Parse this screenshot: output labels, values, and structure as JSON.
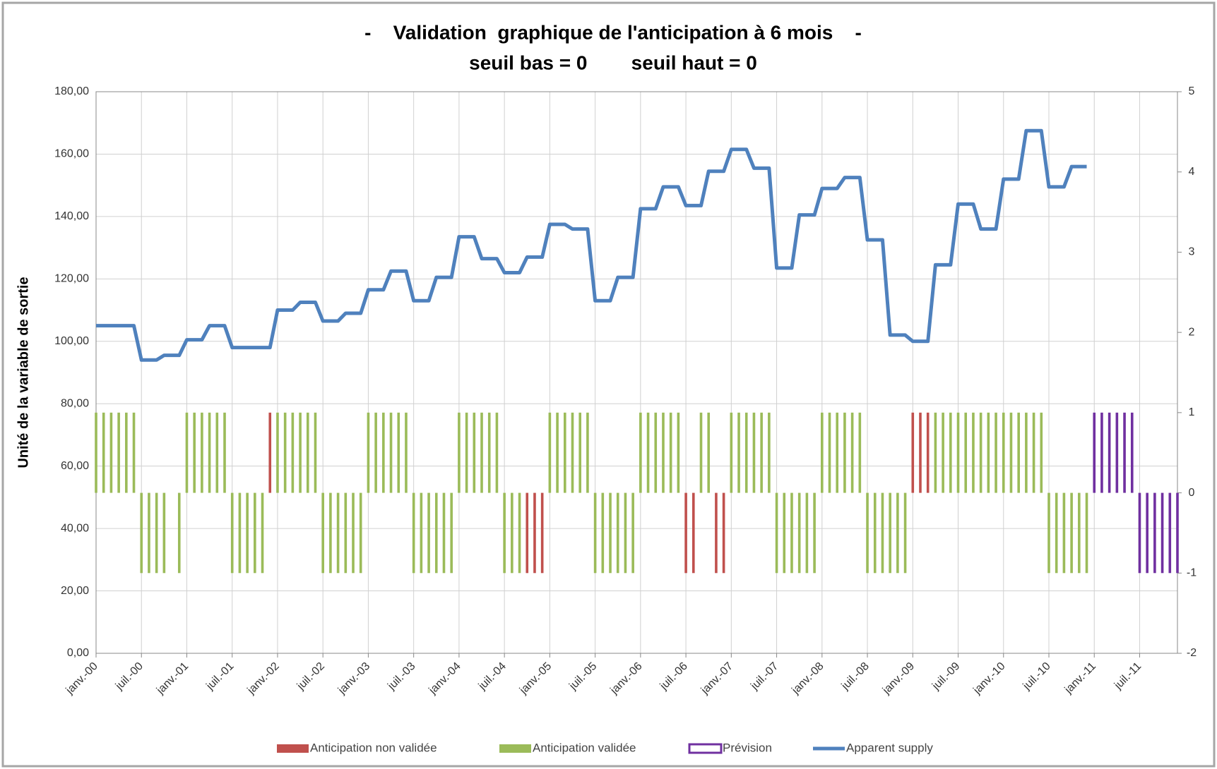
{
  "chart_data": {
    "type": "combo",
    "title": "-    Validation  graphique de l'anticipation à 6 mois    -",
    "subtitle": "seuil bas = 0        seuil haut = 0",
    "y_label": "Unité de la variable de sortie",
    "categories": [
      "janv.-00",
      null,
      null,
      null,
      null,
      null,
      "juil.-00",
      null,
      null,
      null,
      null,
      null,
      "janv.-01",
      null,
      null,
      null,
      null,
      null,
      "juil.-01",
      null,
      null,
      null,
      null,
      null,
      "janv.-02",
      null,
      null,
      null,
      null,
      null,
      "juil.-02",
      null,
      null,
      null,
      null,
      null,
      "janv.-03",
      null,
      null,
      null,
      null,
      null,
      "juil.-03",
      null,
      null,
      null,
      null,
      null,
      "janv.-04",
      null,
      null,
      null,
      null,
      null,
      "juil.-04",
      null,
      null,
      null,
      null,
      null,
      "janv.-05",
      null,
      null,
      null,
      null,
      null,
      "juil.-05",
      null,
      null,
      null,
      null,
      null,
      "janv.-06",
      null,
      null,
      null,
      null,
      null,
      "juil.-06",
      null,
      null,
      null,
      null,
      null,
      "janv.-07",
      null,
      null,
      null,
      null,
      null,
      "juil.-07",
      null,
      null,
      null,
      null,
      null,
      "janv.-08",
      null,
      null,
      null,
      null,
      null,
      "juil.-08",
      null,
      null,
      null,
      null,
      null,
      "janv.-09",
      null,
      null,
      null,
      null,
      null,
      "juil.-09",
      null,
      null,
      null,
      null,
      null,
      "janv.-10",
      null,
      null,
      null,
      null,
      null,
      "juil.-10",
      null,
      null,
      null,
      null,
      null,
      "janv.-11",
      null,
      null,
      null,
      null,
      null,
      "juil.-11",
      null,
      null,
      null,
      null,
      null
    ],
    "ylim": [
      0,
      180
    ],
    "yticks": [
      {
        "value": 0,
        "label": "0,00"
      },
      {
        "value": 20,
        "label": "20,00"
      },
      {
        "value": 40,
        "label": "40,00"
      },
      {
        "value": 60,
        "label": "60,00"
      },
      {
        "value": 80,
        "label": "80,00"
      },
      {
        "value": 100,
        "label": "100,00"
      },
      {
        "value": 120,
        "label": "120,00"
      },
      {
        "value": 140,
        "label": "140,00"
      },
      {
        "value": 160,
        "label": "160,00"
      },
      {
        "value": 180,
        "label": "180,00"
      }
    ],
    "y2lim": [
      -2,
      5
    ],
    "y2ticks": [
      -2,
      -1,
      0,
      1,
      2,
      3,
      4,
      5
    ],
    "grid": true,
    "legend": "bottom",
    "series": [
      {
        "name": "Anticipation non validée",
        "type": "bar",
        "axis": "y2",
        "color": "#c0504d",
        "values": [
          null,
          null,
          null,
          null,
          null,
          null,
          null,
          null,
          null,
          null,
          null,
          null,
          null,
          null,
          null,
          null,
          null,
          null,
          null,
          null,
          null,
          null,
          null,
          1,
          null,
          null,
          null,
          null,
          null,
          null,
          null,
          null,
          null,
          null,
          null,
          null,
          null,
          null,
          null,
          null,
          null,
          null,
          null,
          null,
          null,
          null,
          null,
          null,
          null,
          null,
          null,
          null,
          null,
          null,
          null,
          null,
          null,
          -1,
          -1,
          -1,
          null,
          null,
          null,
          null,
          null,
          null,
          null,
          null,
          null,
          null,
          null,
          null,
          null,
          null,
          null,
          null,
          null,
          null,
          -1,
          -1,
          null,
          null,
          -1,
          -1,
          null,
          null,
          null,
          null,
          null,
          null,
          null,
          null,
          null,
          null,
          null,
          null,
          null,
          null,
          null,
          null,
          null,
          null,
          null,
          null,
          null,
          null,
          null,
          null,
          1,
          1,
          1,
          null,
          null,
          null,
          null,
          null,
          null,
          null,
          null,
          null,
          null,
          null,
          null,
          null,
          null,
          null,
          null,
          null,
          null,
          null,
          null,
          null,
          null,
          null,
          null,
          null,
          null,
          null,
          null,
          null,
          null,
          null,
          null,
          null
        ]
      },
      {
        "name": "Anticipation validée",
        "type": "bar",
        "axis": "y2",
        "color": "#9bbb59",
        "values": [
          1,
          1,
          1,
          1,
          1,
          1,
          -1,
          -1,
          -1,
          -1,
          null,
          -1,
          1,
          1,
          1,
          1,
          1,
          1,
          -1,
          -1,
          -1,
          -1,
          -1,
          null,
          1,
          1,
          1,
          1,
          1,
          1,
          -1,
          -1,
          -1,
          -1,
          -1,
          -1,
          1,
          1,
          1,
          1,
          1,
          1,
          -1,
          -1,
          -1,
          -1,
          -1,
          -1,
          1,
          1,
          1,
          1,
          1,
          1,
          -1,
          -1,
          -1,
          null,
          null,
          null,
          1,
          1,
          1,
          1,
          1,
          1,
          -1,
          -1,
          -1,
          -1,
          -1,
          -1,
          1,
          1,
          1,
          1,
          1,
          1,
          null,
          null,
          1,
          1,
          null,
          null,
          1,
          1,
          1,
          1,
          1,
          1,
          -1,
          -1,
          -1,
          -1,
          -1,
          -1,
          1,
          1,
          1,
          1,
          1,
          1,
          -1,
          -1,
          -1,
          -1,
          -1,
          -1,
          null,
          null,
          null,
          1,
          1,
          1,
          1,
          1,
          1,
          1,
          1,
          1,
          1,
          1,
          1,
          1,
          1,
          1,
          -1,
          -1,
          -1,
          -1,
          -1,
          -1,
          null,
          null,
          null,
          null,
          null,
          null,
          null,
          null,
          null,
          null,
          null,
          null
        ]
      },
      {
        "name": "Prévision",
        "type": "bar",
        "axis": "y2",
        "color": "#7030a0",
        "values": [
          null,
          null,
          null,
          null,
          null,
          null,
          null,
          null,
          null,
          null,
          null,
          null,
          null,
          null,
          null,
          null,
          null,
          null,
          null,
          null,
          null,
          null,
          null,
          null,
          null,
          null,
          null,
          null,
          null,
          null,
          null,
          null,
          null,
          null,
          null,
          null,
          null,
          null,
          null,
          null,
          null,
          null,
          null,
          null,
          null,
          null,
          null,
          null,
          null,
          null,
          null,
          null,
          null,
          null,
          null,
          null,
          null,
          null,
          null,
          null,
          null,
          null,
          null,
          null,
          null,
          null,
          null,
          null,
          null,
          null,
          null,
          null,
          null,
          null,
          null,
          null,
          null,
          null,
          null,
          null,
          null,
          null,
          null,
          null,
          null,
          null,
          null,
          null,
          null,
          null,
          null,
          null,
          null,
          null,
          null,
          null,
          null,
          null,
          null,
          null,
          null,
          null,
          null,
          null,
          null,
          null,
          null,
          null,
          null,
          null,
          null,
          null,
          null,
          null,
          null,
          null,
          null,
          null,
          null,
          null,
          null,
          null,
          null,
          null,
          null,
          null,
          null,
          null,
          null,
          null,
          null,
          null,
          1,
          1,
          1,
          1,
          1,
          1,
          -1,
          -1,
          -1,
          -1,
          -1,
          -1
        ]
      },
      {
        "name": "Apparent supply",
        "type": "line",
        "color": "#4f81bd",
        "values": [
          105,
          105,
          105,
          105,
          105,
          105,
          94,
          94,
          94,
          95.5,
          95.5,
          95.5,
          100.5,
          100.5,
          100.5,
          105,
          105,
          105,
          98,
          98,
          98,
          98,
          98,
          98,
          110,
          110,
          110,
          112.5,
          112.5,
          112.5,
          106.5,
          106.5,
          106.5,
          109,
          109,
          109,
          116.5,
          116.5,
          116.5,
          122.5,
          122.5,
          122.5,
          113,
          113,
          113,
          120.5,
          120.5,
          120.5,
          133.5,
          133.5,
          133.5,
          126.5,
          126.5,
          126.5,
          122,
          122,
          122,
          127,
          127,
          127,
          137.5,
          137.5,
          137.5,
          136,
          136,
          136,
          113,
          113,
          113,
          120.5,
          120.5,
          120.5,
          142.5,
          142.5,
          142.5,
          149.5,
          149.5,
          149.5,
          143.5,
          143.5,
          143.5,
          154.5,
          154.5,
          154.5,
          161.5,
          161.5,
          161.5,
          155.5,
          155.5,
          155.5,
          123.5,
          123.5,
          123.5,
          140.5,
          140.5,
          140.5,
          149,
          149,
          149,
          152.5,
          152.5,
          152.5,
          132.5,
          132.5,
          132.5,
          102,
          102,
          102,
          100,
          100,
          100,
          124.5,
          124.5,
          124.5,
          144,
          144,
          144,
          136,
          136,
          136,
          152,
          152,
          152,
          167.5,
          167.5,
          167.5,
          149.5,
          149.5,
          149.5,
          156,
          156,
          156,
          null,
          null,
          null,
          null,
          null,
          null,
          null,
          null,
          null,
          null,
          null,
          null
        ]
      }
    ]
  }
}
